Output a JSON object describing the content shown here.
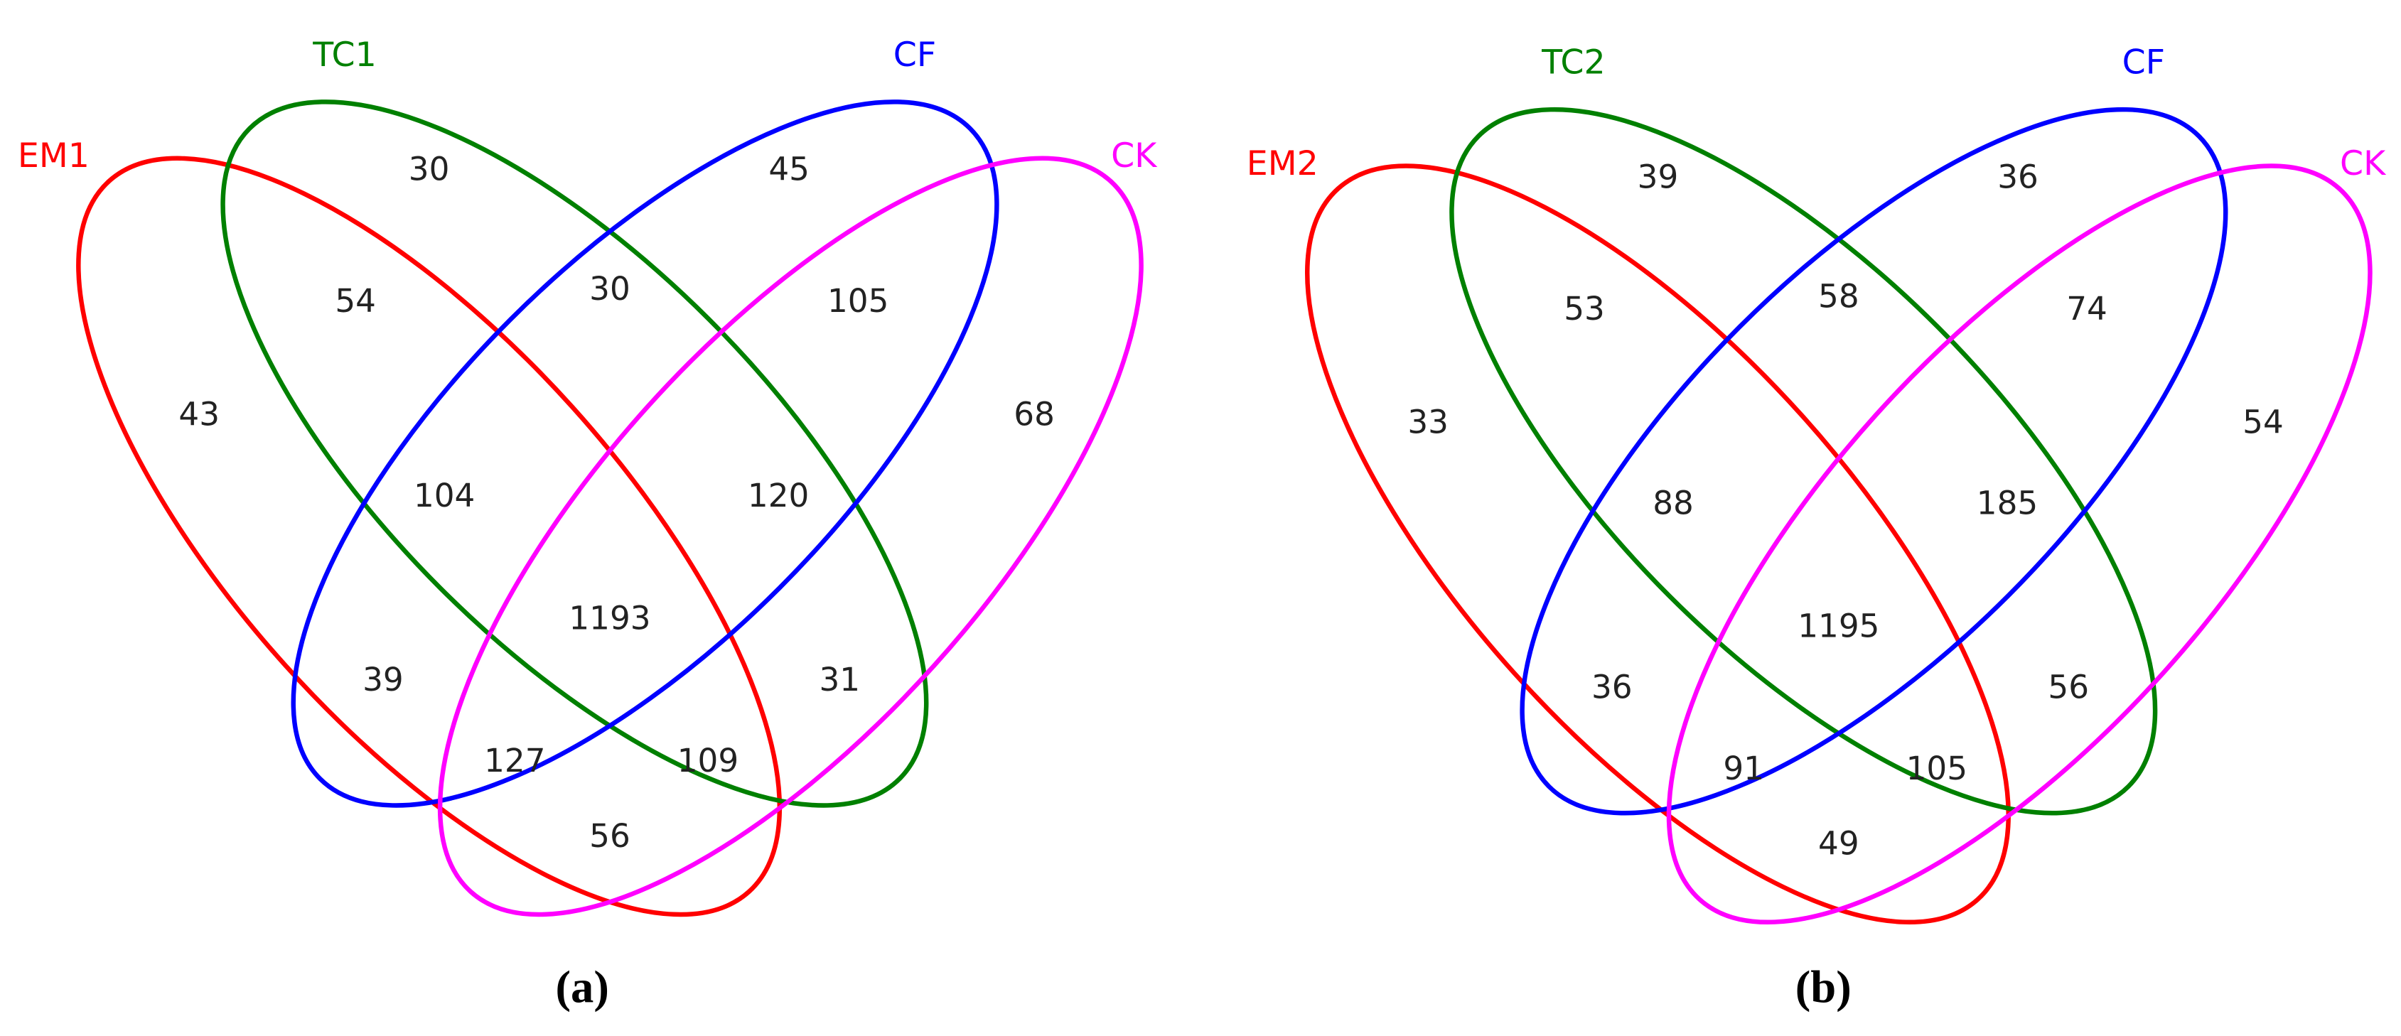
{
  "panels": [
    {
      "caption": "(a)",
      "sets": [
        {
          "name": "EM1",
          "color": "#ff0000"
        },
        {
          "name": "TC1",
          "color": "#008000"
        },
        {
          "name": "CF",
          "color": "#0000ff"
        },
        {
          "name": "CK",
          "color": "#ff00ff"
        }
      ],
      "regions": [
        30,
        45,
        54,
        30,
        105,
        43,
        68,
        104,
        120,
        1193,
        39,
        31,
        127,
        109,
        56
      ]
    },
    {
      "caption": "(b)",
      "sets": [
        {
          "name": "EM2",
          "color": "#ff0000"
        },
        {
          "name": "TC2",
          "color": "#008000"
        },
        {
          "name": "CF",
          "color": "#0000ff"
        },
        {
          "name": "CK",
          "color": "#ff00ff"
        }
      ],
      "regions": [
        39,
        36,
        53,
        58,
        74,
        33,
        54,
        88,
        185,
        1195,
        36,
        56,
        91,
        105,
        49
      ]
    }
  ]
}
